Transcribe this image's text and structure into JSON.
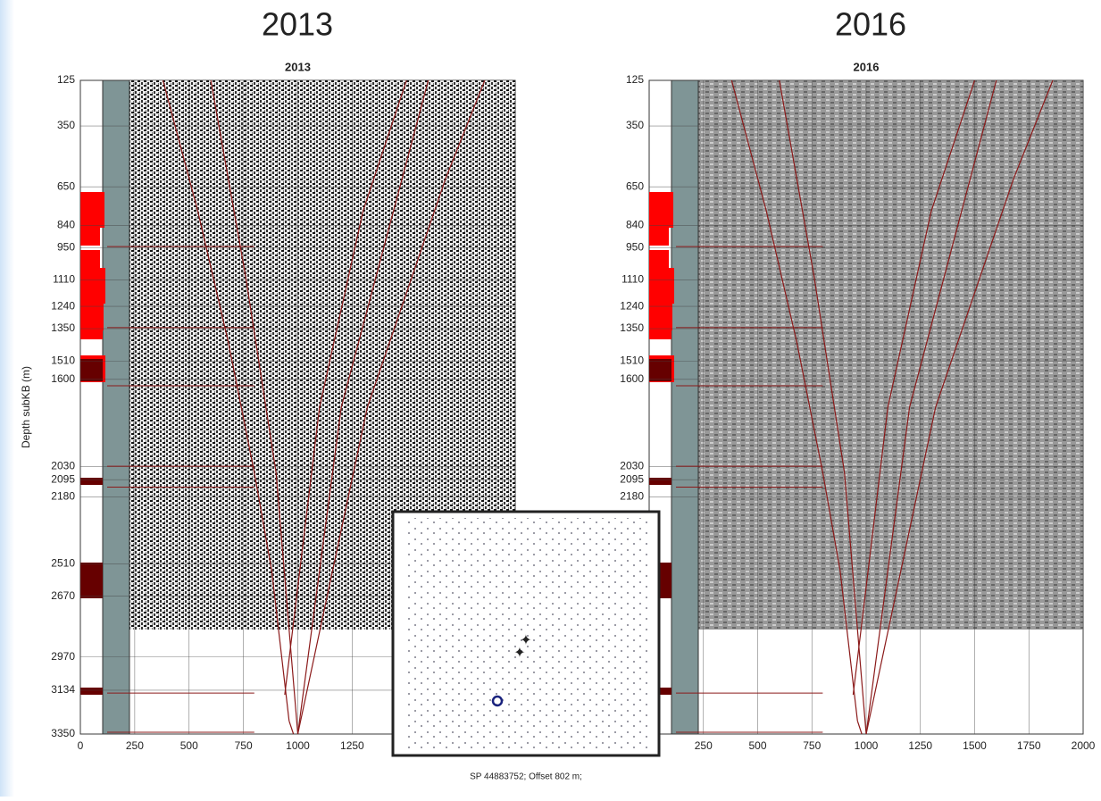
{
  "headings": [
    "2013",
    "2016"
  ],
  "chart_data": [
    {
      "type": "seismic",
      "title": "2013",
      "ylabel": "Depth subKB (m)",
      "xlim": [
        0,
        2000
      ],
      "xticks": [
        0,
        250,
        500,
        750,
        1000,
        1250
      ],
      "ylim": [
        125,
        3350
      ],
      "yticks": [
        125,
        350,
        650,
        840,
        950,
        1110,
        1240,
        1350,
        1510,
        1600,
        2030,
        2095,
        2180,
        2510,
        2670,
        2970,
        3134,
        3350
      ],
      "grid": true
    },
    {
      "type": "seismic",
      "title": "2016",
      "xlim": [
        0,
        2000
      ],
      "xticks": [
        250,
        500,
        750,
        1000,
        1250,
        1500,
        1750,
        2000
      ],
      "ylim": [
        125,
        3350
      ],
      "yticks": [
        125,
        350,
        650,
        840,
        950,
        1110,
        1240,
        1350,
        1510,
        1600,
        2030,
        2095,
        2180
      ],
      "grid": true
    }
  ],
  "inset": {
    "caption": "SP 44883752; Offset  802 m;"
  }
}
